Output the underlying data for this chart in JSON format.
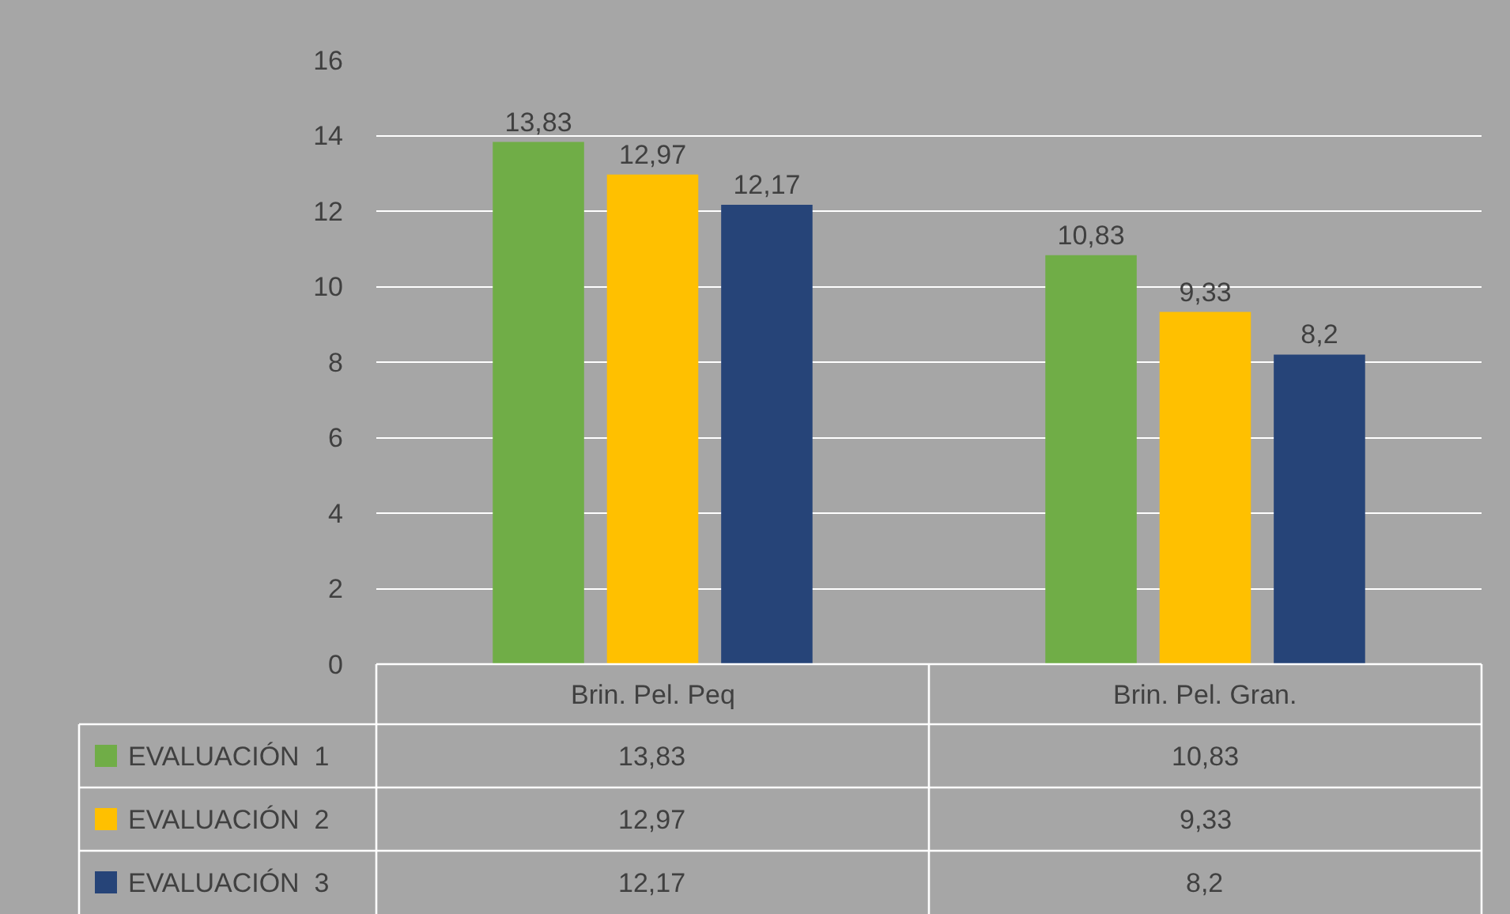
{
  "chart_data": {
    "type": "bar",
    "categories": [
      "Brin. Pel. Peq",
      "Brin. Pel. Gran."
    ],
    "series": [
      {
        "name": "EVALUACIÓN  1",
        "color": "#70ad47",
        "values": [
          13.83,
          10.83
        ],
        "value_labels": [
          "13,83",
          "10,83"
        ]
      },
      {
        "name": "EVALUACIÓN  2",
        "color": "#ffc000",
        "values": [
          12.97,
          9.33
        ],
        "value_labels": [
          "12,97",
          "9,33"
        ]
      },
      {
        "name": "EVALUACIÓN  3",
        "color": "#264478",
        "values": [
          12.17,
          8.2
        ],
        "value_labels": [
          "12,17",
          "8,2"
        ]
      }
    ],
    "ylim": [
      0,
      16
    ],
    "yticks": [
      0,
      2,
      4,
      6,
      8,
      10,
      12,
      14,
      16
    ],
    "grid": "y",
    "legend": "bottom"
  }
}
